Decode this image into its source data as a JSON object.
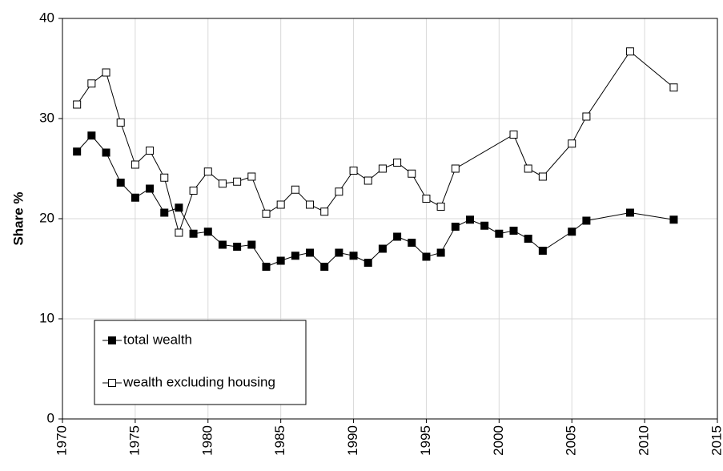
{
  "chart_data": {
    "type": "line",
    "ylabel": "Share %",
    "xlim": [
      1970,
      2015
    ],
    "xticks": [
      1970,
      1975,
      1980,
      1985,
      1990,
      1995,
      2000,
      2005,
      2010,
      2015
    ],
    "ylim": [
      0,
      40
    ],
    "yticks": [
      0,
      10,
      20,
      30,
      40
    ],
    "grid": true,
    "legend": "lower-left",
    "series": [
      {
        "name": "total wealth",
        "color": "#000000",
        "marker": "filled-square",
        "x": [
          1971,
          1972,
          1973,
          1974,
          1975,
          1976,
          1977,
          1978,
          1979,
          1980,
          1981,
          1982,
          1983,
          1984,
          1985,
          1986,
          1987,
          1988,
          1989,
          1990,
          1991,
          1992,
          1993,
          1994,
          1995,
          1996,
          1997,
          1998,
          1999,
          2000,
          2001,
          2002,
          2003,
          2005,
          2006,
          2009,
          2012
        ],
        "values": [
          26.7,
          28.3,
          26.6,
          23.6,
          22.1,
          23.0,
          20.6,
          21.1,
          18.5,
          18.7,
          17.4,
          17.2,
          17.4,
          15.2,
          15.8,
          16.3,
          16.6,
          15.2,
          16.6,
          16.3,
          15.6,
          17.0,
          18.2,
          17.6,
          16.2,
          16.6,
          19.2,
          19.9,
          19.3,
          18.5,
          18.8,
          18.0,
          16.8,
          18.7,
          19.8,
          20.6,
          19.9
        ]
      },
      {
        "name": "wealth excluding housing",
        "color": "#000000",
        "marker": "open-square",
        "x": [
          1971,
          1972,
          1973,
          1974,
          1975,
          1976,
          1977,
          1978,
          1979,
          1980,
          1981,
          1982,
          1983,
          1984,
          1985,
          1986,
          1987,
          1988,
          1989,
          1990,
          1991,
          1992,
          1993,
          1994,
          1995,
          1996,
          1997,
          2001,
          2002,
          2003,
          2005,
          2006,
          2009,
          2012
        ],
        "values": [
          31.4,
          33.5,
          34.6,
          29.6,
          25.4,
          26.8,
          24.1,
          18.6,
          22.8,
          24.7,
          23.5,
          23.7,
          24.2,
          20.5,
          21.4,
          22.9,
          21.4,
          20.7,
          22.7,
          24.8,
          23.8,
          25.0,
          25.6,
          24.5,
          22.0,
          21.2,
          25.0,
          28.4,
          25.0,
          24.2,
          27.5,
          30.2,
          36.7,
          33.1
        ]
      }
    ]
  }
}
